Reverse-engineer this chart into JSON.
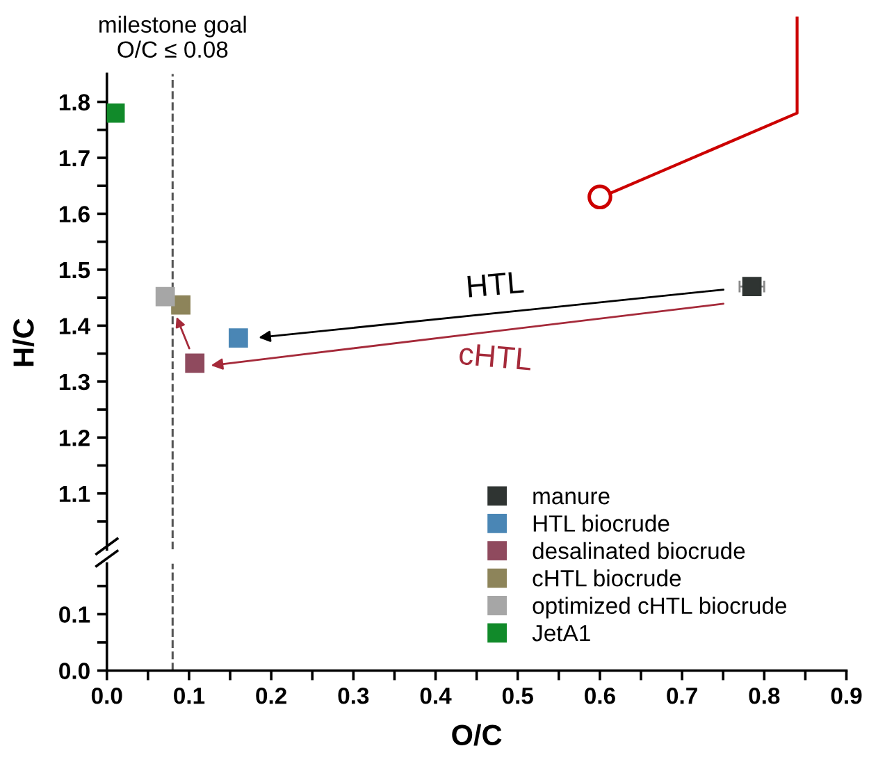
{
  "chart_data": [
    {
      "type": "scatter",
      "ylabel": "H/C",
      "marker": "square",
      "grid": false,
      "legend": "bottom right",
      "tick_labels": "y",
      "xlim": [
        0,
        0.9
      ],
      "ylim": [
        1.0,
        1.85
      ],
      "yticks": [
        {
          "value": 1.05,
          "label": null
        },
        1.1,
        {
          "value": 1.15,
          "label": null
        },
        1.2,
        {
          "value": 1.25,
          "label": null
        },
        1.3,
        {
          "value": 1.35,
          "label": null
        },
        1.4,
        {
          "value": 1.45,
          "label": null
        },
        1.5,
        {
          "value": 1.55,
          "label": null
        },
        1.6,
        {
          "value": 1.65,
          "label": null
        },
        1.7,
        {
          "value": 1.75,
          "label": null
        },
        1.8
      ],
      "series": [
        {
          "name": "manure",
          "color": "#2f3432",
          "x": [
            0.785
          ],
          "values": [
            1.47
          ],
          "xerrors": [
            0.015
          ]
        },
        {
          "name": "HTL biocrude",
          "color": "#4a86b5",
          "x": [
            0.16
          ],
          "values": [
            1.378
          ]
        },
        {
          "name": "desalinated biocrude",
          "color": "#8f4a5e",
          "x": [
            0.107
          ],
          "values": [
            1.333
          ],
          "errors": [
            0.012
          ]
        },
        {
          "name": "cHTL biocrude",
          "color": "#8d845a",
          "x": [
            0.09
          ],
          "values": [
            1.437
          ]
        },
        {
          "name": "optimized cHTL biocrude",
          "color": "#a6a6a6",
          "x": [
            0.071
          ],
          "values": [
            1.452
          ]
        },
        {
          "name": "JetA1",
          "color": "#118a2a",
          "x": [
            0.01
          ],
          "values": [
            1.78
          ]
        }
      ],
      "ref_lines": [
        {
          "axis": "x",
          "value": 0.08,
          "label": "milestone goal\nO/C ≤ 0.08",
          "color": "#555555",
          "line_style": "dashed"
        }
      ],
      "annotations": [
        "HTL",
        "cHTL"
      ]
    },
    {
      "type": "scatter",
      "xlabel": "O/C",
      "grid": false,
      "xlim": [
        0,
        0.9
      ],
      "ylim": [
        0,
        0.19
      ],
      "xticks": [
        {
          "value": 0,
          "label": "0.0"
        },
        {
          "value": 0.05,
          "label": null
        },
        0.1,
        {
          "value": 0.15,
          "label": null
        },
        0.2,
        {
          "value": 0.25,
          "label": null
        },
        0.3,
        {
          "value": 0.35,
          "label": null
        },
        0.4,
        {
          "value": 0.45,
          "label": null
        },
        0.5,
        {
          "value": 0.55,
          "label": null
        },
        0.6,
        {
          "value": 0.65,
          "label": null
        },
        0.7,
        {
          "value": 0.75,
          "label": null
        },
        0.8,
        {
          "value": 0.85,
          "label": null
        },
        0.9
      ],
      "yticks": [
        {
          "value": 0,
          "label": "0.0"
        },
        {
          "value": 0.05,
          "label": null
        },
        0.1,
        {
          "value": 0.15,
          "label": null
        }
      ],
      "ref_lines": [
        {
          "axis": "x",
          "value": 0.08,
          "color": "#555555",
          "line_style": "dashed"
        }
      ]
    }
  ]
}
